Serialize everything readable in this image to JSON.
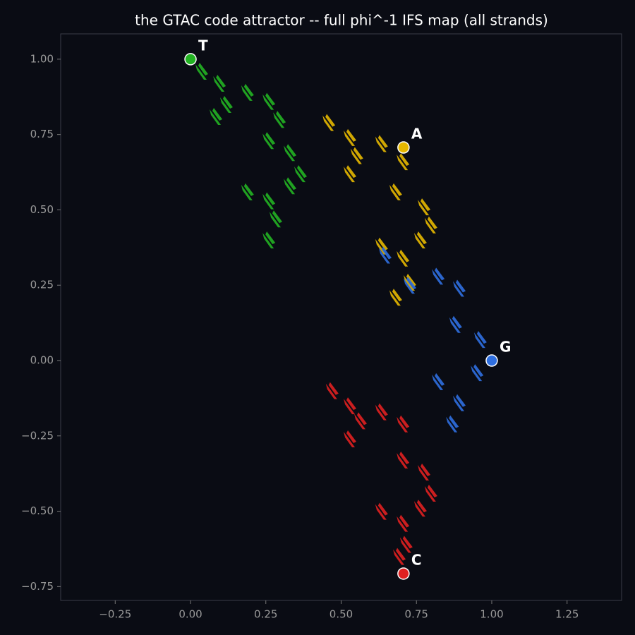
{
  "chart_data": {
    "type": "scatter",
    "title": "the GTAC code attractor  --  full phi^-1 IFS map (all strands)",
    "xlim": [
      -0.431,
      1.431
    ],
    "ylim": [
      -0.796,
      1.084
    ],
    "xticks": [
      {
        "value": -0.25,
        "label": "−0.25"
      },
      {
        "value": 0,
        "label": "0.00"
      },
      {
        "value": 0.25,
        "label": "0.25"
      },
      {
        "value": 0.5,
        "label": "0.50"
      },
      {
        "value": 0.75,
        "label": "0.75"
      },
      {
        "value": 1,
        "label": "1.00"
      },
      {
        "value": 1.25,
        "label": "1.25"
      }
    ],
    "yticks": [
      {
        "value": -0.75,
        "label": "−0.75"
      },
      {
        "value": -0.5,
        "label": "−0.50"
      },
      {
        "value": -0.25,
        "label": "−0.25"
      },
      {
        "value": 0,
        "label": "0.00"
      },
      {
        "value": 0.25,
        "label": "0.25"
      },
      {
        "value": 0.5,
        "label": "0.50"
      },
      {
        "value": 0.75,
        "label": "0.75"
      },
      {
        "value": 1,
        "label": "1.00"
      }
    ],
    "series": [
      {
        "color": "#22b322",
        "x": [
          0.035,
          0.094,
          0.117,
          0.082,
          0.187,
          0.258,
          0.293,
          0.258,
          0.328,
          0.363,
          0.187,
          0.258,
          0.328,
          0.281,
          0.258
        ],
        "y": [
          0.96,
          0.92,
          0.85,
          0.81,
          0.89,
          0.86,
          0.8,
          0.73,
          0.69,
          0.62,
          0.56,
          0.53,
          0.58,
          0.47,
          0.4
        ]
      },
      {
        "color": "#e6b800",
        "x": [
          0.457,
          0.527,
          0.55,
          0.527,
          0.632,
          0.703,
          0.679,
          0.773,
          0.796,
          0.761,
          0.632,
          0.703,
          0.726,
          0.679
        ],
        "y": [
          0.79,
          0.74,
          0.68,
          0.62,
          0.72,
          0.66,
          0.56,
          0.51,
          0.45,
          0.4,
          0.38,
          0.34,
          0.26,
          0.21
        ]
      },
      {
        "color": "#2f6fe0",
        "x": [
          0.644,
          0.82,
          0.89,
          0.878,
          0.96,
          0.949,
          0.82,
          0.89,
          0.867,
          0.726
        ],
        "y": [
          0.35,
          0.28,
          0.24,
          0.12,
          0.07,
          -0.04,
          -0.07,
          -0.14,
          -0.21,
          0.25
        ]
      },
      {
        "color": "#e02020",
        "x": [
          0.468,
          0.527,
          0.562,
          0.527,
          0.632,
          0.703,
          0.703,
          0.773,
          0.796,
          0.761,
          0.632,
          0.703,
          0.714,
          0.691
        ],
        "y": [
          -0.1,
          -0.15,
          -0.2,
          -0.26,
          -0.17,
          -0.21,
          -0.33,
          -0.37,
          -0.44,
          -0.49,
          -0.5,
          -0.54,
          -0.61,
          -0.65
        ]
      }
    ],
    "vertices": [
      {
        "text": "T",
        "x": 0,
        "y": 1,
        "color": "#22b322"
      },
      {
        "text": "A",
        "x": 0.707,
        "y": 0.707,
        "color": "#e6b800"
      },
      {
        "text": "G",
        "x": 1,
        "y": 0,
        "color": "#2f6fe0"
      },
      {
        "text": "C",
        "x": 0.707,
        "y": -0.707,
        "color": "#e02020"
      }
    ]
  }
}
